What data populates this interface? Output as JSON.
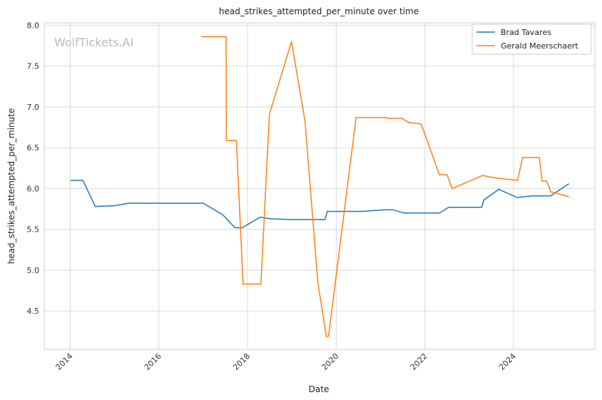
{
  "chart_data": {
    "type": "line",
    "title": "head_strikes_attempted_per_minute over time",
    "xlabel": "Date",
    "ylabel": "head_strikes_attempted_per_minute",
    "watermark": "WolfTickets.AI",
    "x_ticks": [
      "2014",
      "2016",
      "2018",
      "2020",
      "2022",
      "2024"
    ],
    "y_ticks": [
      "4.5",
      "5.0",
      "5.5",
      "6.0",
      "6.5",
      "7.0",
      "7.5",
      "8.0"
    ],
    "xlim": [
      "2013-06-01",
      "2025-11-01"
    ],
    "ylim": [
      4.03,
      8.03
    ],
    "grid": true,
    "legend_position": "top-right",
    "series": [
      {
        "name": "Brad Tavares",
        "color": "#1f77b4",
        "points": [
          [
            "2014-01-04",
            6.1
          ],
          [
            "2014-04-16",
            6.1
          ],
          [
            "2014-07-26",
            5.78
          ],
          [
            "2015-01-01",
            5.79
          ],
          [
            "2015-05-01",
            5.82
          ],
          [
            "2016-01-01",
            5.82
          ],
          [
            "2017-01-01",
            5.82
          ],
          [
            "2017-06-10",
            5.68
          ],
          [
            "2017-09-20",
            5.52
          ],
          [
            "2017-11-20",
            5.52
          ],
          [
            "2018-04-14",
            5.65
          ],
          [
            "2018-07-01",
            5.63
          ],
          [
            "2018-12-15",
            5.62
          ],
          [
            "2019-10-01",
            5.62
          ],
          [
            "2019-10-20",
            5.72
          ],
          [
            "2020-08-01",
            5.72
          ],
          [
            "2021-02-01",
            5.74
          ],
          [
            "2021-04-10",
            5.74
          ],
          [
            "2021-07-15",
            5.7
          ],
          [
            "2022-05-01",
            5.7
          ],
          [
            "2022-07-15",
            5.77
          ],
          [
            "2023-04-15",
            5.77
          ],
          [
            "2023-05-01",
            5.86
          ],
          [
            "2023-09-01",
            5.99
          ],
          [
            "2024-02-01",
            5.89
          ],
          [
            "2024-06-01",
            5.91
          ],
          [
            "2024-11-01",
            5.91
          ],
          [
            "2025-04-01",
            6.06
          ]
        ]
      },
      {
        "name": "Gerald Meerschaert",
        "color": "#ff7f0e",
        "points": [
          [
            "2016-12-17",
            7.86
          ],
          [
            "2017-07-08",
            7.86
          ],
          [
            "2017-07-10",
            6.59
          ],
          [
            "2017-10-01",
            6.59
          ],
          [
            "2017-11-25",
            4.83
          ],
          [
            "2018-04-21",
            4.83
          ],
          [
            "2018-06-30",
            6.91
          ],
          [
            "2018-12-29",
            7.8
          ],
          [
            "2019-04-20",
            6.82
          ],
          [
            "2019-08-03",
            4.85
          ],
          [
            "2019-10-12",
            4.19
          ],
          [
            "2019-10-30",
            4.19
          ],
          [
            "2020-06-13",
            6.87
          ],
          [
            "2020-09-01",
            6.87
          ],
          [
            "2021-02-01",
            6.87
          ],
          [
            "2021-03-20",
            6.86
          ],
          [
            "2021-06-26",
            6.86
          ],
          [
            "2021-08-20",
            6.81
          ],
          [
            "2021-12-01",
            6.79
          ],
          [
            "2022-04-30",
            6.17
          ],
          [
            "2022-07-02",
            6.17
          ],
          [
            "2022-08-13",
            6.0
          ],
          [
            "2023-04-22",
            6.16
          ],
          [
            "2023-08-01",
            6.13
          ],
          [
            "2024-02-03",
            6.1
          ],
          [
            "2024-03-16",
            6.38
          ],
          [
            "2024-08-01",
            6.38
          ],
          [
            "2024-08-24",
            6.09
          ],
          [
            "2024-10-01",
            6.09
          ],
          [
            "2024-11-02",
            5.96
          ],
          [
            "2025-04-01",
            5.9
          ]
        ]
      }
    ]
  }
}
